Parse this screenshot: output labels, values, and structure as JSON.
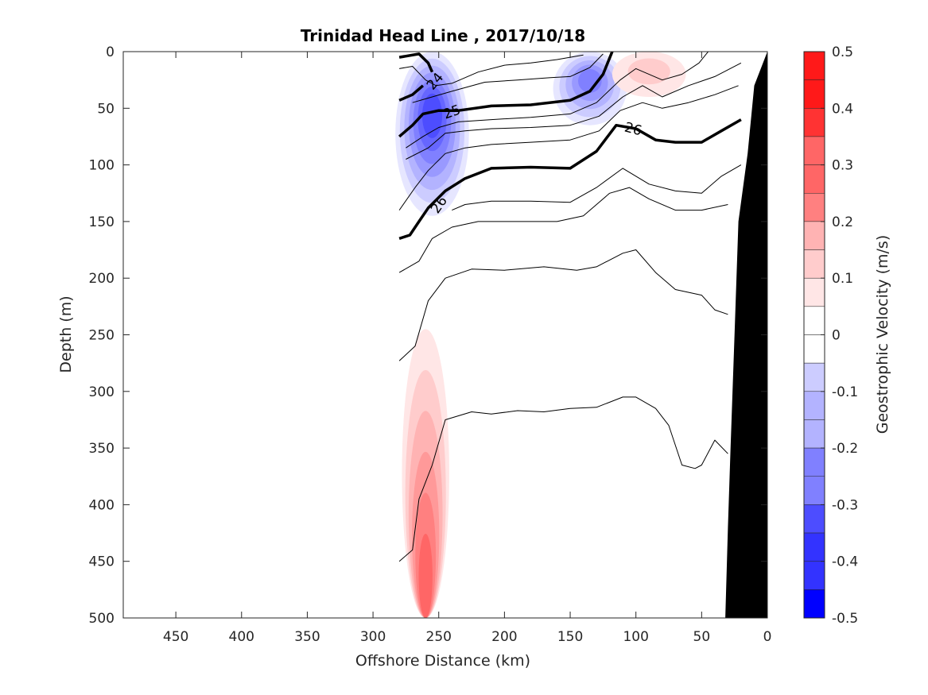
{
  "chart_data": {
    "type": "contour",
    "title": "Trinidad Head Line , 2017/10/18",
    "xlabel": "Offshore Distance (km)",
    "ylabel": "Depth (m)",
    "xlim": [
      490,
      0
    ],
    "ylim": [
      0,
      500
    ],
    "x_reversed": true,
    "y_reversed": true,
    "xticks": [
      450,
      400,
      350,
      300,
      250,
      200,
      150,
      100,
      50,
      0
    ],
    "yticks": [
      0,
      50,
      100,
      150,
      200,
      250,
      300,
      350,
      400,
      450,
      500
    ],
    "colorbar": {
      "label": "Geostrophic Velocity (m/s)",
      "range": [
        -0.5,
        0.5
      ],
      "step": 0.05,
      "ticks": [
        "0.5",
        "0.4",
        "0.3",
        "0.2",
        "0.1",
        "0",
        "-0.1",
        "-0.2",
        "-0.3",
        "-0.4",
        "-0.5"
      ],
      "tick_values": [
        0.5,
        0.4,
        0.3,
        0.2,
        0.1,
        0,
        -0.1,
        -0.2,
        -0.3,
        -0.4,
        -0.5
      ],
      "colormap": "blue-white-red",
      "colors": {
        "negative": "#0000ff",
        "zero": "#ffffff",
        "positive": "#ff0000"
      }
    },
    "velocity_features": [
      {
        "name": "offshore jet core",
        "sign": "negative",
        "x_center": 255,
        "y_range": [
          0,
          145
        ],
        "peak": -0.35
      },
      {
        "name": "mid-shelf southward flow",
        "sign": "negative",
        "x_center": 135,
        "y_range": [
          0,
          65
        ],
        "peak": -0.25
      },
      {
        "name": "nearshore northward flow",
        "sign": "positive",
        "x_center": 90,
        "y_range": [
          0,
          40
        ],
        "peak": 0.1
      },
      {
        "name": "deep northward flow",
        "sign": "positive",
        "x_center": 260,
        "y_range": [
          245,
          500
        ],
        "peak": 0.3
      }
    ],
    "density_contours": [
      {
        "labels": [
          "24"
        ],
        "bold": true,
        "points": [
          [
            280,
            5
          ],
          [
            265,
            2
          ],
          [
            258,
            10
          ],
          [
            255,
            18
          ]
        ]
      },
      {
        "labels": [],
        "bold": false,
        "points": [
          [
            280,
            15
          ],
          [
            270,
            13
          ],
          [
            260,
            25
          ],
          [
            252,
            30
          ],
          [
            240,
            28
          ],
          [
            220,
            18
          ],
          [
            200,
            12
          ],
          [
            180,
            10
          ],
          [
            160,
            7
          ],
          [
            150,
            5
          ],
          [
            140,
            3
          ]
        ]
      },
      {
        "labels": [],
        "bold": true,
        "points": [
          [
            280,
            43
          ],
          [
            270,
            38
          ],
          [
            262,
            30
          ]
        ]
      },
      {
        "labels": [],
        "bold": false,
        "points": [
          [
            270,
            45
          ],
          [
            255,
            40
          ],
          [
            240,
            35
          ],
          [
            215,
            27
          ],
          [
            190,
            25
          ],
          [
            165,
            23
          ],
          [
            150,
            22
          ],
          [
            135,
            14
          ],
          [
            125,
            2
          ]
        ]
      },
      {
        "labels": [
          "25"
        ],
        "bold": true,
        "points": [
          [
            280,
            75
          ],
          [
            270,
            65
          ],
          [
            262,
            55
          ],
          [
            250,
            52
          ],
          [
            235,
            52
          ],
          [
            210,
            48
          ],
          [
            180,
            47
          ],
          [
            150,
            43
          ],
          [
            135,
            35
          ],
          [
            125,
            20
          ],
          [
            118,
            0
          ]
        ]
      },
      {
        "labels": [],
        "bold": false,
        "points": [
          [
            275,
            85
          ],
          [
            262,
            75
          ],
          [
            250,
            67
          ],
          [
            235,
            62
          ],
          [
            210,
            60
          ],
          [
            180,
            58
          ],
          [
            150,
            55
          ],
          [
            130,
            45
          ],
          [
            112,
            25
          ],
          [
            100,
            15
          ],
          [
            80,
            25
          ],
          [
            65,
            20
          ],
          [
            52,
            10
          ],
          [
            45,
            0
          ]
        ]
      },
      {
        "labels": [],
        "bold": false,
        "points": [
          [
            275,
            95
          ],
          [
            258,
            85
          ],
          [
            245,
            72
          ],
          [
            230,
            70
          ],
          [
            210,
            68
          ],
          [
            180,
            67
          ],
          [
            150,
            65
          ],
          [
            128,
            57
          ],
          [
            110,
            40
          ],
          [
            95,
            30
          ],
          [
            80,
            40
          ],
          [
            60,
            30
          ],
          [
            40,
            22
          ],
          [
            20,
            10
          ]
        ]
      },
      {
        "labels": [
          "26"
        ],
        "bold": true,
        "points": [
          [
            280,
            165
          ],
          [
            272,
            162
          ],
          [
            265,
            150
          ],
          [
            258,
            138
          ],
          [
            245,
            123
          ],
          [
            230,
            112
          ],
          [
            210,
            103
          ],
          [
            180,
            102
          ],
          [
            150,
            103
          ],
          [
            130,
            88
          ],
          [
            115,
            65
          ],
          [
            100,
            68
          ],
          [
            85,
            78
          ],
          [
            70,
            80
          ],
          [
            50,
            80
          ],
          [
            35,
            70
          ],
          [
            20,
            60
          ]
        ]
      },
      {
        "labels": [],
        "bold": false,
        "points": [
          [
            280,
            140
          ],
          [
            268,
            120
          ],
          [
            258,
            105
          ],
          [
            245,
            90
          ],
          [
            230,
            85
          ],
          [
            210,
            82
          ],
          [
            180,
            80
          ],
          [
            150,
            78
          ],
          [
            128,
            70
          ],
          [
            112,
            52
          ],
          [
            95,
            45
          ],
          [
            80,
            50
          ],
          [
            60,
            45
          ],
          [
            40,
            38
          ],
          [
            22,
            30
          ]
        ]
      },
      {
        "labels": [],
        "bold": false,
        "points": [
          [
            240,
            140
          ],
          [
            230,
            135
          ],
          [
            210,
            132
          ],
          [
            180,
            132
          ],
          [
            150,
            133
          ],
          [
            130,
            120
          ],
          [
            110,
            103
          ],
          [
            90,
            117
          ],
          [
            70,
            123
          ],
          [
            50,
            125
          ],
          [
            35,
            110
          ],
          [
            20,
            100
          ]
        ]
      },
      {
        "labels": [],
        "bold": false,
        "points": [
          [
            280,
            195
          ],
          [
            265,
            185
          ],
          [
            255,
            165
          ],
          [
            240,
            155
          ],
          [
            220,
            150
          ],
          [
            190,
            150
          ],
          [
            160,
            150
          ],
          [
            140,
            145
          ],
          [
            120,
            125
          ],
          [
            105,
            120
          ],
          [
            90,
            130
          ],
          [
            70,
            140
          ],
          [
            50,
            140
          ],
          [
            30,
            135
          ]
        ]
      },
      {
        "labels": [],
        "bold": false,
        "points": [
          [
            280,
            273
          ],
          [
            268,
            260
          ],
          [
            258,
            220
          ],
          [
            245,
            200
          ],
          [
            225,
            192
          ],
          [
            200,
            193
          ],
          [
            170,
            190
          ],
          [
            145,
            193
          ],
          [
            130,
            190
          ],
          [
            110,
            178
          ],
          [
            100,
            175
          ],
          [
            85,
            195
          ],
          [
            70,
            210
          ],
          [
            50,
            215
          ],
          [
            40,
            228
          ],
          [
            30,
            232
          ]
        ]
      },
      {
        "labels": [],
        "bold": false,
        "points": [
          [
            280,
            450
          ],
          [
            270,
            440
          ],
          [
            265,
            395
          ],
          [
            255,
            365
          ],
          [
            245,
            325
          ],
          [
            225,
            318
          ],
          [
            210,
            320
          ],
          [
            190,
            317
          ],
          [
            170,
            318
          ],
          [
            150,
            315
          ],
          [
            130,
            314
          ],
          [
            110,
            305
          ],
          [
            100,
            305
          ],
          [
            85,
            315
          ],
          [
            75,
            330
          ],
          [
            65,
            365
          ],
          [
            55,
            368
          ],
          [
            50,
            365
          ],
          [
            40,
            343
          ],
          [
            30,
            355
          ]
        ]
      }
    ],
    "contour_labels": [
      {
        "text": "24",
        "x": 253,
        "y": 26,
        "angle": -50
      },
      {
        "text": "25",
        "x": 240,
        "y": 53,
        "angle": -20
      },
      {
        "text": "26",
        "x": 102,
        "y": 68,
        "angle": 15
      },
      {
        "text": "26",
        "x": 250,
        "y": 135,
        "angle": -55
      }
    ],
    "bathymetry": {
      "color": "#000000",
      "points": [
        [
          0,
          0
        ],
        [
          10,
          30
        ],
        [
          15,
          90
        ],
        [
          22,
          150
        ],
        [
          25,
          250
        ],
        [
          28,
          350
        ],
        [
          30,
          420
        ],
        [
          32,
          500
        ],
        [
          0,
          500
        ]
      ]
    }
  }
}
